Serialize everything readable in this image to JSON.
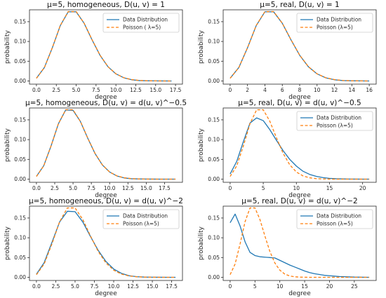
{
  "figure": {
    "colors": {
      "data": "#1f77b4",
      "poisson": "#ff7f0e",
      "axis": "#262626",
      "legend_frame": "#cccccc"
    }
  },
  "chart_data": [
    {
      "type": "line",
      "title": "μ=5, homogeneous, D(u, v) = 1",
      "xlabel": "degree",
      "ylabel": "probability",
      "xlim": [
        0,
        17.5
      ],
      "ylim": [
        0,
        0.18
      ],
      "xticks": [
        "0.0",
        "2.5",
        "5.0",
        "7.5",
        "10.0",
        "12.5",
        "15.0",
        "17.5"
      ],
      "yticks": [
        "0.00",
        "0.05",
        "0.10",
        "0.15"
      ],
      "legend": {
        "position": "top-right",
        "entries": [
          "Data Distribution",
          "Poisson ( λ=5)"
        ]
      },
      "series": [
        {
          "name": "Data Distribution",
          "style": "solid",
          "x": [
            0,
            1,
            2,
            3,
            4,
            5,
            6,
            7,
            8,
            9,
            10,
            11,
            12,
            13,
            14,
            15,
            16,
            17
          ],
          "y": [
            0.007,
            0.034,
            0.084,
            0.14,
            0.175,
            0.175,
            0.146,
            0.104,
            0.065,
            0.036,
            0.018,
            0.008,
            0.003,
            0.001,
            0.0005,
            0.0002,
            0.0001,
            0.0
          ]
        },
        {
          "name": "Poisson ( λ=5)",
          "style": "dashed",
          "x": [
            0,
            1,
            2,
            3,
            4,
            5,
            6,
            7,
            8,
            9,
            10,
            11,
            12,
            13,
            14,
            15,
            16,
            17
          ],
          "y": [
            0.0067,
            0.0337,
            0.0842,
            0.1404,
            0.1755,
            0.1755,
            0.1462,
            0.1044,
            0.0653,
            0.0363,
            0.0181,
            0.0082,
            0.0034,
            0.0013,
            0.0005,
            0.0002,
            0.0,
            0.0
          ]
        }
      ]
    },
    {
      "type": "line",
      "title": "μ=5, real, D(u, v) = 1",
      "xlabel": "degree",
      "ylabel": "probability",
      "xlim": [
        0,
        16
      ],
      "ylim": [
        0,
        0.18
      ],
      "xticks": [
        "0",
        "2",
        "4",
        "6",
        "8",
        "10",
        "12",
        "14",
        "16"
      ],
      "yticks": [
        "0.00",
        "0.05",
        "0.10",
        "0.15"
      ],
      "legend": {
        "position": "top-right",
        "entries": [
          "Data Distribution",
          "Poisson (λ=5)"
        ]
      },
      "series": [
        {
          "name": "Data Distribution",
          "style": "solid",
          "x": [
            0,
            1,
            2,
            3,
            4,
            5,
            6,
            7,
            8,
            9,
            10,
            11,
            12,
            13,
            14,
            15,
            16
          ],
          "y": [
            0.007,
            0.034,
            0.084,
            0.14,
            0.175,
            0.175,
            0.146,
            0.104,
            0.065,
            0.036,
            0.018,
            0.008,
            0.003,
            0.001,
            0.0005,
            0.0002,
            0.0
          ]
        },
        {
          "name": "Poisson (λ=5)",
          "style": "dashed",
          "x": [
            0,
            1,
            2,
            3,
            4,
            5,
            6,
            7,
            8,
            9,
            10,
            11,
            12,
            13,
            14,
            15,
            16
          ],
          "y": [
            0.0067,
            0.0337,
            0.0842,
            0.1404,
            0.1755,
            0.1755,
            0.1462,
            0.1044,
            0.0653,
            0.0363,
            0.0181,
            0.0082,
            0.0034,
            0.0013,
            0.0005,
            0.0002,
            0.0
          ]
        }
      ]
    },
    {
      "type": "line",
      "title": "μ=5, homogeneous, D(u, v) = d(u, v)^−0.5",
      "xlabel": "degree",
      "ylabel": "probability",
      "xlim": [
        0,
        19
      ],
      "ylim": [
        0,
        0.18
      ],
      "xticks": [
        "0.0",
        "2.5",
        "5.0",
        "7.5",
        "10.0",
        "12.5",
        "15.0",
        "17.5"
      ],
      "yticks": [
        "0.00",
        "0.05",
        "0.10",
        "0.15"
      ],
      "legend": {
        "position": "none",
        "entries": []
      },
      "series": [
        {
          "name": "",
          "style": "solid",
          "x": [
            0,
            1,
            2,
            3,
            4,
            5,
            6,
            7,
            8,
            9,
            10,
            11,
            12,
            13,
            14,
            15,
            16,
            17,
            18,
            19
          ],
          "y": [
            0.007,
            0.034,
            0.084,
            0.14,
            0.175,
            0.174,
            0.146,
            0.104,
            0.065,
            0.036,
            0.018,
            0.008,
            0.003,
            0.001,
            0.0005,
            0.0002,
            0.0001,
            0.0,
            0.0,
            0.0
          ]
        },
        {
          "name": "",
          "style": "dashed",
          "x": [
            0,
            1,
            2,
            3,
            4,
            5,
            6,
            7,
            8,
            9,
            10,
            11,
            12,
            13,
            14,
            15,
            16,
            17,
            18,
            19
          ],
          "y": [
            0.0067,
            0.0337,
            0.0842,
            0.1404,
            0.1755,
            0.1755,
            0.1462,
            0.1044,
            0.0653,
            0.0363,
            0.0181,
            0.0082,
            0.0034,
            0.0013,
            0.0005,
            0.0002,
            0.0,
            0.0,
            0.0,
            0.0
          ]
        }
      ]
    },
    {
      "type": "line",
      "title": "μ=5, real, D(u, v) = d(u, v)^−0.5",
      "xlabel": "degree",
      "ylabel": "probability",
      "xlim": [
        0,
        21
      ],
      "ylim": [
        0,
        0.18
      ],
      "xticks": [
        "0",
        "5",
        "10",
        "15",
        "20"
      ],
      "yticks": [
        "0.00",
        "0.05",
        "0.10",
        "0.15"
      ],
      "legend": {
        "position": "top-right",
        "entries": [
          "Data Distribution",
          "Poisson (λ=5)"
        ]
      },
      "series": [
        {
          "name": "Data Distribution",
          "style": "solid",
          "x": [
            0,
            1,
            2,
            3,
            4,
            5,
            6,
            7,
            8,
            9,
            10,
            11,
            12,
            13,
            14,
            15,
            16,
            17,
            18,
            19,
            20,
            21
          ],
          "y": [
            0.013,
            0.045,
            0.095,
            0.142,
            0.155,
            0.148,
            0.125,
            0.098,
            0.072,
            0.05,
            0.033,
            0.02,
            0.012,
            0.007,
            0.004,
            0.002,
            0.001,
            0.0005,
            0.0002,
            0.0001,
            0.0,
            0.0
          ]
        },
        {
          "name": "Poisson (λ=5)",
          "style": "dashed",
          "x": [
            0,
            1,
            2,
            3,
            4,
            5,
            6,
            7,
            8,
            9,
            10,
            11,
            12,
            13,
            14,
            15,
            16,
            17,
            18,
            19,
            20,
            21
          ],
          "y": [
            0.0067,
            0.0337,
            0.0842,
            0.1404,
            0.1755,
            0.1755,
            0.1462,
            0.1044,
            0.0653,
            0.0363,
            0.0181,
            0.0082,
            0.0034,
            0.0013,
            0.0005,
            0.0002,
            0.0,
            0.0,
            0.0,
            0.0,
            0.0,
            0.0
          ]
        }
      ]
    },
    {
      "type": "line",
      "title": "μ=5, homogeneous, D(u, v) = d(u, v)^−2",
      "xlabel": "degree",
      "ylabel": "probability",
      "xlim": [
        0,
        18
      ],
      "ylim": [
        0,
        0.18
      ],
      "xticks": [
        "0.0",
        "2.5",
        "5.0",
        "7.5",
        "10.0",
        "12.5",
        "15.0",
        "17.5"
      ],
      "yticks": [
        "0.00",
        "0.05",
        "0.10",
        "0.15"
      ],
      "legend": {
        "position": "top-right",
        "entries": [
          "Data Distribution",
          "Poisson (λ=5)"
        ]
      },
      "series": [
        {
          "name": "Data Distribution",
          "style": "solid",
          "x": [
            0,
            1,
            2,
            3,
            4,
            5,
            6,
            7,
            8,
            9,
            10,
            11,
            12,
            13,
            14,
            15,
            16,
            17,
            18
          ],
          "y": [
            0.008,
            0.037,
            0.088,
            0.14,
            0.167,
            0.166,
            0.14,
            0.103,
            0.068,
            0.04,
            0.021,
            0.01,
            0.004,
            0.0015,
            0.0005,
            0.0002,
            0.0001,
            0.0,
            0.0
          ]
        },
        {
          "name": "Poisson (λ=5)",
          "style": "dashed",
          "x": [
            0,
            1,
            2,
            3,
            4,
            5,
            6,
            7,
            8,
            9,
            10,
            11,
            12,
            13,
            14,
            15,
            16,
            17,
            18
          ],
          "y": [
            0.0067,
            0.0337,
            0.0842,
            0.1404,
            0.1755,
            0.1755,
            0.1462,
            0.1044,
            0.0653,
            0.0363,
            0.0181,
            0.0082,
            0.0034,
            0.0013,
            0.0005,
            0.0002,
            0.0,
            0.0,
            0.0
          ]
        }
      ]
    },
    {
      "type": "line",
      "title": "μ=5, real, D(u, v) = d(u, v)^−2",
      "xlabel": "degree",
      "ylabel": "probability",
      "xlim": [
        0,
        28
      ],
      "ylim": [
        0,
        0.18
      ],
      "xticks": [
        "0",
        "5",
        "10",
        "15",
        "20",
        "25"
      ],
      "yticks": [
        "0.00",
        "0.05",
        "0.10",
        "0.15"
      ],
      "legend": {
        "position": "top-right",
        "entries": [
          "Data Distribution",
          "Poisson (λ=5)"
        ]
      },
      "series": [
        {
          "name": "Data Distribution",
          "style": "solid",
          "x": [
            0,
            1,
            2,
            3,
            4,
            5,
            6,
            7,
            8,
            9,
            10,
            11,
            12,
            13,
            14,
            15,
            16,
            17,
            18,
            19,
            20,
            21,
            22,
            23,
            24,
            25,
            26,
            27,
            28
          ],
          "y": [
            0.138,
            0.16,
            0.13,
            0.09,
            0.063,
            0.055,
            0.052,
            0.051,
            0.05,
            0.049,
            0.043,
            0.037,
            0.031,
            0.026,
            0.021,
            0.016,
            0.012,
            0.009,
            0.007,
            0.005,
            0.004,
            0.003,
            0.002,
            0.0015,
            0.001,
            0.0005,
            0.0003,
            0.0001,
            0.0
          ]
        },
        {
          "name": "Poisson (λ=5)",
          "style": "dashed",
          "x": [
            0,
            1,
            2,
            3,
            4,
            5,
            6,
            7,
            8,
            9,
            10,
            11,
            12,
            13,
            14,
            15,
            16,
            17,
            18,
            19,
            20,
            21,
            22,
            23,
            24,
            25,
            26,
            27,
            28
          ],
          "y": [
            0.0067,
            0.0337,
            0.0842,
            0.1404,
            0.1755,
            0.1755,
            0.1462,
            0.1044,
            0.0653,
            0.0363,
            0.0181,
            0.0082,
            0.0034,
            0.0013,
            0.0005,
            0.0002,
            0.0,
            0.0,
            0.0,
            0.0,
            0.0,
            0.0,
            0.0,
            0.0,
            0.0,
            0.0,
            0.0,
            0.0,
            0.0
          ]
        }
      ]
    }
  ]
}
